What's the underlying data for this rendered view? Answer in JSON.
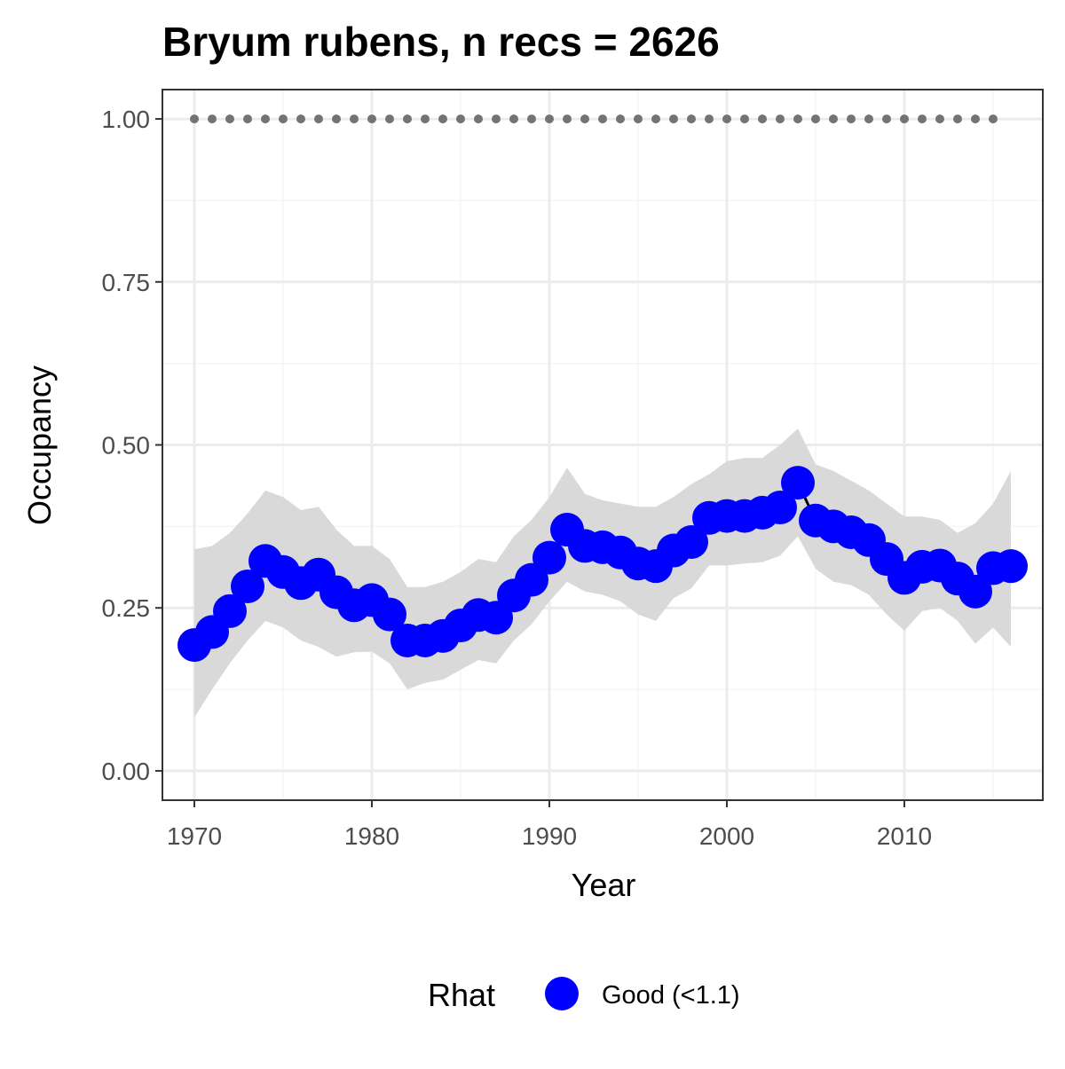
{
  "chart_data": {
    "type": "line",
    "title": "Bryum rubens, n recs = 2626",
    "xlabel": "Year",
    "ylabel": "Occupancy",
    "xlim": [
      1968.2,
      2017.8
    ],
    "ylim": [
      -0.045,
      1.045
    ],
    "x_ticks": [
      1970,
      1980,
      1990,
      2000,
      2010
    ],
    "x_tick_labels": [
      "1970",
      "1980",
      "1990",
      "2000",
      "2010"
    ],
    "x_minor_ticks": [
      1975,
      1985,
      1995,
      2005,
      2015
    ],
    "y_ticks": [
      0,
      0.25,
      0.5,
      0.75,
      1.0
    ],
    "y_tick_labels": [
      "0.00",
      "0.25",
      "0.50",
      "0.75",
      "1.00"
    ],
    "y_minor_ticks": [
      0.125,
      0.375,
      0.625,
      0.875
    ],
    "grid": true,
    "legend": {
      "position": "bottom",
      "title": "Rhat",
      "entries": [
        {
          "label": "Good (<1.1)",
          "color": "#0000ff"
        }
      ]
    },
    "colors": {
      "points": "#0000ff",
      "ribbon": "#d9d9d9",
      "dots": "#737373",
      "panel_border": "#333333",
      "grid_major": "#ebebeb",
      "grid_minor": "#f5f5f5"
    },
    "x": [
      1970,
      1971,
      1972,
      1973,
      1974,
      1975,
      1976,
      1977,
      1978,
      1979,
      1980,
      1981,
      1982,
      1983,
      1984,
      1985,
      1986,
      1987,
      1988,
      1989,
      1990,
      1991,
      1992,
      1993,
      1994,
      1995,
      1996,
      1997,
      1998,
      1999,
      2000,
      2001,
      2002,
      2003,
      2004,
      2005,
      2006,
      2007,
      2008,
      2009,
      2010,
      2011,
      2012,
      2013,
      2014,
      2015,
      2016
    ],
    "series": [
      {
        "values": [
          0.193,
          0.213,
          0.245,
          0.283,
          0.322,
          0.305,
          0.288,
          0.301,
          0.274,
          0.254,
          0.262,
          0.24,
          0.2,
          0.2,
          0.207,
          0.223,
          0.239,
          0.235,
          0.269,
          0.293,
          0.327,
          0.37,
          0.345,
          0.343,
          0.335,
          0.318,
          0.314,
          0.338,
          0.351,
          0.388,
          0.391,
          0.391,
          0.396,
          0.404,
          0.442,
          0.384,
          0.375,
          0.366,
          0.354,
          0.325,
          0.296,
          0.313,
          0.315,
          0.295,
          0.275,
          0.311,
          0.314
        ],
        "lower": [
          0.082,
          0.125,
          0.165,
          0.2,
          0.23,
          0.22,
          0.2,
          0.19,
          0.175,
          0.182,
          0.183,
          0.165,
          0.125,
          0.135,
          0.14,
          0.155,
          0.17,
          0.165,
          0.2,
          0.225,
          0.26,
          0.29,
          0.275,
          0.27,
          0.26,
          0.24,
          0.23,
          0.265,
          0.28,
          0.315,
          0.315,
          0.318,
          0.32,
          0.33,
          0.36,
          0.31,
          0.29,
          0.285,
          0.27,
          0.24,
          0.215,
          0.245,
          0.25,
          0.23,
          0.195,
          0.22,
          0.19
        ],
        "upper": [
          0.34,
          0.345,
          0.365,
          0.395,
          0.43,
          0.42,
          0.4,
          0.405,
          0.37,
          0.345,
          0.345,
          0.325,
          0.282,
          0.282,
          0.29,
          0.305,
          0.325,
          0.32,
          0.36,
          0.385,
          0.42,
          0.465,
          0.425,
          0.415,
          0.41,
          0.405,
          0.405,
          0.42,
          0.44,
          0.455,
          0.475,
          0.48,
          0.48,
          0.5,
          0.525,
          0.47,
          0.46,
          0.445,
          0.43,
          0.41,
          0.39,
          0.39,
          0.385,
          0.365,
          0.38,
          0.41,
          0.46
        ]
      },
      {
        "x": [
          1970,
          1971,
          1972,
          1973,
          1974,
          1975,
          1976,
          1977,
          1978,
          1979,
          1980,
          1981,
          1982,
          1983,
          1984,
          1985,
          1986,
          1987,
          1988,
          1989,
          1990,
          1991,
          1992,
          1993,
          1994,
          1995,
          1996,
          1997,
          1998,
          1999,
          2000,
          2001,
          2002,
          2003,
          2004,
          2005,
          2006,
          2007,
          2008,
          2009,
          2010,
          2011,
          2012,
          2013,
          2014,
          2015
        ],
        "values": [
          1,
          1,
          1,
          1,
          1,
          1,
          1,
          1,
          1,
          1,
          1,
          1,
          1,
          1,
          1,
          1,
          1,
          1,
          1,
          1,
          1,
          1,
          1,
          1,
          1,
          1,
          1,
          1,
          1,
          1,
          1,
          1,
          1,
          1,
          1,
          1,
          1,
          1,
          1,
          1,
          1,
          1,
          1,
          1,
          1,
          1
        ]
      }
    ]
  }
}
